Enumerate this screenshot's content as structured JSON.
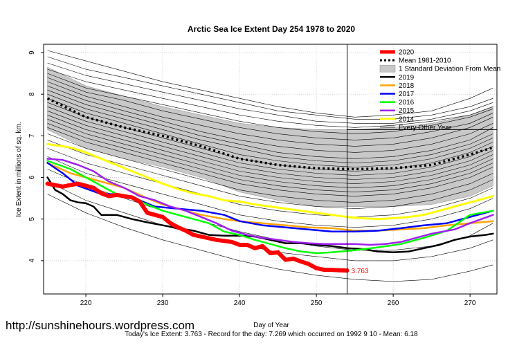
{
  "chart_data": {
    "type": "line",
    "title": "Arctic Sea Ice Extent Day 254 1978 to 2020",
    "xlabel": "Day of Year",
    "ylabel": "Ice Extent in millions of sq. km.",
    "xlim": [
      214.5,
      273.5
    ],
    "ylim": [
      3.2,
      9.2
    ],
    "x_ticks": [
      220,
      230,
      240,
      250,
      260,
      270
    ],
    "y_ticks": [
      4,
      5,
      6,
      7,
      8,
      9
    ],
    "grid": true,
    "legend_position": "top-right",
    "current_day": 254,
    "legend": [
      {
        "label": "2020",
        "color": "#ff0000",
        "style": "thick"
      },
      {
        "label": "Mean 1981-2010",
        "color": "#000000",
        "style": "dotted"
      },
      {
        "label": "1 Standard Deviation From Mean",
        "color": "#c8c8c8",
        "style": "band"
      },
      {
        "label": "2019",
        "color": "#000000",
        "style": "solid"
      },
      {
        "label": "2018",
        "color": "#ffa500",
        "style": "solid"
      },
      {
        "label": "2017",
        "color": "#0000ff",
        "style": "solid"
      },
      {
        "label": "2016",
        "color": "#00ff00",
        "style": "solid"
      },
      {
        "label": "2015",
        "color": "#a020f0",
        "style": "solid"
      },
      {
        "label": "2014",
        "color": "#ffff00",
        "style": "solid"
      },
      {
        "label": "Every Other Year",
        "color": "#000000",
        "style": "thin"
      }
    ],
    "mean": {
      "name": "Mean 1981-2010",
      "x": [
        215,
        220,
        225,
        230,
        235,
        240,
        245,
        250,
        255,
        260,
        265,
        270,
        273
      ],
      "values": [
        7.9,
        7.45,
        7.2,
        7.0,
        6.75,
        6.45,
        6.3,
        6.22,
        6.2,
        6.22,
        6.3,
        6.55,
        6.72
      ]
    },
    "std_band": {
      "x": [
        215,
        220,
        225,
        230,
        235,
        240,
        245,
        250,
        255,
        260,
        265,
        270,
        273
      ],
      "upper": [
        8.65,
        8.2,
        7.95,
        7.7,
        7.5,
        7.3,
        7.2,
        7.15,
        7.15,
        7.2,
        7.3,
        7.5,
        7.7
      ],
      "lower": [
        7.15,
        6.7,
        6.45,
        6.25,
        6.0,
        5.65,
        5.45,
        5.3,
        5.3,
        5.3,
        5.35,
        5.55,
        5.8
      ]
    },
    "series": [
      {
        "name": "2020",
        "color": "#ff0000",
        "width": 6,
        "x": [
          215,
          217,
          218,
          219,
          221,
          222,
          223,
          224,
          226,
          227,
          228,
          230,
          231,
          232,
          233,
          234,
          235,
          237,
          239,
          240,
          241,
          242,
          243,
          244,
          245,
          246,
          247,
          248,
          249,
          250,
          251,
          252,
          253,
          254
        ],
        "values": [
          5.85,
          5.78,
          5.82,
          5.85,
          5.75,
          5.62,
          5.55,
          5.58,
          5.52,
          5.42,
          5.15,
          5.05,
          4.9,
          4.8,
          4.72,
          4.62,
          4.58,
          4.5,
          4.45,
          4.38,
          4.38,
          4.3,
          4.35,
          4.18,
          4.2,
          4.02,
          4.05,
          3.98,
          3.92,
          3.82,
          3.78,
          3.78,
          3.77,
          3.763
        ]
      },
      {
        "name": "2019",
        "color": "#000000",
        "width": 2.5,
        "x": [
          215,
          216,
          217,
          218,
          219,
          220,
          221,
          222,
          224,
          226,
          228,
          230,
          232,
          234,
          236,
          238,
          240,
          242,
          244,
          246,
          248,
          250,
          252,
          254,
          256,
          258,
          260,
          262,
          264,
          266,
          268,
          270,
          272,
          273
        ],
        "values": [
          6.0,
          5.7,
          5.6,
          5.45,
          5.4,
          5.38,
          5.3,
          5.1,
          5.1,
          5.0,
          4.92,
          4.85,
          4.78,
          4.72,
          4.62,
          4.6,
          4.6,
          4.58,
          4.5,
          4.42,
          4.42,
          4.38,
          4.35,
          4.3,
          4.28,
          4.22,
          4.2,
          4.22,
          4.3,
          4.38,
          4.5,
          4.58,
          4.62,
          4.65
        ]
      },
      {
        "name": "2018",
        "color": "#ffa500",
        "width": 2.5,
        "x": [
          215,
          218,
          220,
          222,
          225,
          228,
          230,
          233,
          235,
          238,
          240,
          243,
          246,
          249,
          252,
          255,
          258,
          261,
          264,
          267,
          270,
          273
        ],
        "values": [
          6.35,
          6.1,
          6.0,
          5.9,
          5.75,
          5.5,
          5.35,
          5.2,
          5.1,
          5.0,
          4.95,
          4.9,
          4.85,
          4.8,
          4.78,
          4.72,
          4.72,
          4.75,
          4.78,
          4.85,
          4.9,
          4.95
        ]
      },
      {
        "name": "2017",
        "color": "#0000ff",
        "width": 2.5,
        "x": [
          215,
          217,
          219,
          222,
          224,
          227,
          229,
          232,
          235,
          238,
          240,
          243,
          246,
          249,
          252,
          255,
          258,
          261,
          264,
          267,
          270,
          273
        ],
        "values": [
          6.35,
          6.1,
          5.8,
          5.6,
          5.6,
          5.45,
          5.3,
          5.25,
          5.2,
          5.1,
          4.95,
          4.85,
          4.8,
          4.75,
          4.7,
          4.7,
          4.72,
          4.78,
          4.85,
          4.9,
          5.05,
          5.2
        ]
      },
      {
        "name": "2016",
        "color": "#00ff00",
        "width": 2.5,
        "x": [
          215,
          218,
          220,
          222,
          224,
          226,
          228,
          230,
          233,
          236,
          238,
          240,
          242,
          244,
          246,
          248,
          250,
          252,
          255,
          258,
          261,
          264,
          267,
          270,
          273
        ],
        "values": [
          6.4,
          6.2,
          6.0,
          5.8,
          5.6,
          5.5,
          5.35,
          5.2,
          5.05,
          4.9,
          4.7,
          4.62,
          4.5,
          4.4,
          4.3,
          4.22,
          4.18,
          4.2,
          4.25,
          4.32,
          4.4,
          4.55,
          4.72,
          5.1,
          5.2
        ]
      },
      {
        "name": "2015",
        "color": "#a020f0",
        "width": 2.5,
        "x": [
          215,
          217,
          219,
          221,
          223,
          225,
          227,
          229,
          231,
          233,
          235,
          237,
          239,
          241,
          243,
          245,
          247,
          249,
          251,
          253,
          255,
          257,
          259,
          261,
          263,
          265,
          268,
          270,
          273
        ],
        "values": [
          6.45,
          6.42,
          6.3,
          6.15,
          5.9,
          5.75,
          5.55,
          5.45,
          5.3,
          5.2,
          5.05,
          4.9,
          4.72,
          4.62,
          4.55,
          4.5,
          4.45,
          4.42,
          4.4,
          4.4,
          4.4,
          4.38,
          4.4,
          4.45,
          4.55,
          4.65,
          4.75,
          4.9,
          5.1
        ]
      },
      {
        "name": "2014",
        "color": "#ffff00",
        "width": 3,
        "x": [
          215,
          218,
          220,
          222,
          224,
          226,
          228,
          230,
          232,
          234,
          236,
          238,
          240,
          242,
          244,
          246,
          248,
          250,
          252,
          254,
          256,
          258,
          260,
          262,
          264,
          266,
          268,
          270,
          273
        ],
        "values": [
          6.8,
          6.72,
          6.6,
          6.45,
          6.3,
          6.15,
          6.0,
          5.85,
          5.72,
          5.62,
          5.55,
          5.45,
          5.42,
          5.35,
          5.3,
          5.25,
          5.2,
          5.15,
          5.1,
          5.05,
          5.02,
          5.0,
          5.02,
          5.05,
          5.1,
          5.2,
          5.3,
          5.4,
          5.55
        ]
      }
    ],
    "other_years": [
      [
        9.05,
        8.8,
        8.55,
        8.3,
        8.1,
        7.9,
        7.7,
        7.55,
        7.45,
        7.5,
        7.6,
        7.9,
        8.15
      ],
      [
        8.9,
        8.6,
        8.4,
        8.2,
        8.0,
        7.8,
        7.6,
        7.5,
        7.4,
        7.4,
        7.5,
        7.7,
        7.9
      ],
      [
        8.75,
        8.45,
        8.25,
        8.05,
        7.85,
        7.65,
        7.5,
        7.35,
        7.3,
        7.3,
        7.4,
        7.6,
        7.8
      ],
      [
        8.6,
        8.3,
        8.1,
        7.9,
        7.7,
        7.5,
        7.35,
        7.25,
        7.2,
        7.25,
        7.35,
        7.5,
        7.7
      ],
      [
        8.5,
        8.15,
        7.95,
        7.75,
        7.55,
        7.35,
        7.2,
        7.1,
        7.05,
        7.1,
        7.25,
        7.45,
        7.65
      ],
      [
        8.4,
        8.05,
        7.85,
        7.6,
        7.4,
        7.2,
        7.05,
        6.95,
        6.9,
        6.95,
        7.1,
        7.3,
        7.55
      ],
      [
        8.3,
        7.95,
        7.7,
        7.45,
        7.25,
        7.05,
        6.9,
        6.8,
        6.75,
        6.8,
        6.95,
        7.2,
        7.45
      ],
      [
        8.2,
        7.85,
        7.6,
        7.35,
        7.1,
        6.9,
        6.75,
        6.65,
        6.6,
        6.65,
        6.8,
        7.05,
        7.3
      ],
      [
        8.1,
        7.75,
        7.5,
        7.25,
        7.0,
        6.8,
        6.6,
        6.5,
        6.45,
        6.5,
        6.65,
        6.9,
        7.2
      ],
      [
        8.0,
        7.65,
        7.4,
        7.15,
        6.9,
        6.7,
        6.5,
        6.4,
        6.35,
        6.4,
        6.55,
        6.8,
        7.05
      ],
      [
        7.9,
        7.55,
        7.3,
        7.05,
        6.8,
        6.55,
        6.4,
        6.3,
        6.25,
        6.3,
        6.45,
        6.7,
        6.95
      ],
      [
        7.8,
        7.45,
        7.2,
        6.95,
        6.7,
        6.45,
        6.3,
        6.2,
        6.15,
        6.2,
        6.35,
        6.6,
        6.85
      ],
      [
        7.7,
        7.35,
        7.1,
        6.85,
        6.6,
        6.35,
        6.2,
        6.1,
        6.05,
        6.1,
        6.25,
        6.5,
        6.75
      ],
      [
        7.6,
        7.25,
        7.0,
        6.75,
        6.5,
        6.25,
        6.1,
        6.0,
        5.95,
        6.0,
        6.15,
        6.4,
        6.65
      ],
      [
        7.5,
        7.15,
        6.9,
        6.65,
        6.4,
        6.15,
        6.0,
        5.9,
        5.85,
        5.9,
        6.05,
        6.3,
        6.55
      ],
      [
        7.4,
        7.05,
        6.8,
        6.55,
        6.3,
        6.05,
        5.9,
        5.8,
        5.75,
        5.8,
        5.95,
        6.2,
        6.45
      ],
      [
        7.3,
        6.95,
        6.7,
        6.45,
        6.2,
        5.95,
        5.8,
        5.7,
        5.65,
        5.7,
        5.85,
        6.1,
        6.35
      ],
      [
        7.2,
        6.85,
        6.6,
        6.35,
        6.1,
        5.85,
        5.7,
        5.6,
        5.55,
        5.6,
        5.75,
        6.0,
        6.25
      ],
      [
        7.05,
        6.7,
        6.45,
        6.2,
        5.95,
        5.7,
        5.55,
        5.45,
        5.4,
        5.45,
        5.6,
        5.85,
        6.1
      ],
      [
        6.9,
        6.55,
        6.3,
        6.05,
        5.8,
        5.55,
        5.4,
        5.3,
        5.25,
        5.3,
        5.45,
        5.7,
        5.95
      ],
      [
        6.7,
        6.35,
        6.1,
        5.85,
        5.6,
        5.35,
        5.2,
        5.1,
        5.05,
        5.1,
        5.25,
        5.5,
        5.75
      ],
      [
        6.5,
        6.1,
        5.85,
        5.6,
        5.35,
        5.1,
        4.95,
        4.85,
        4.8,
        4.85,
        5.0,
        5.25,
        5.5
      ],
      [
        6.2,
        5.8,
        5.5,
        5.2,
        4.95,
        4.7,
        4.5,
        4.35,
        4.25,
        4.25,
        4.35,
        4.6,
        4.9
      ],
      [
        5.9,
        5.45,
        5.15,
        4.85,
        4.6,
        4.4,
        4.2,
        4.1,
        4.0,
        4.0,
        4.1,
        4.3,
        4.5
      ],
      [
        5.6,
        5.15,
        4.8,
        4.5,
        4.25,
        4.0,
        3.8,
        3.65,
        3.55,
        3.5,
        3.55,
        3.75,
        3.9
      ]
    ],
    "other_years_x": [
      215,
      220,
      225,
      230,
      235,
      240,
      245,
      250,
      255,
      260,
      265,
      270,
      273
    ],
    "end_label": "3.763",
    "watermark": "http://sunshinehours.wordpress.com",
    "footnote": "Today's Ice Extent: 3.763  - Record for the day: 7.269 which occurred on 1992 9 10  - Mean: 6.18"
  }
}
